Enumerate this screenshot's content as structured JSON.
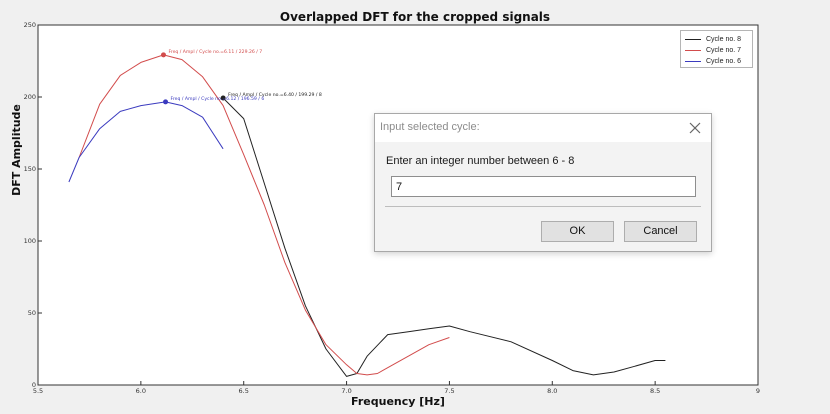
{
  "dialog": {
    "title": "Input selected cycle:",
    "prompt": "Enter an integer number between 6 - 8",
    "input_value": "7",
    "ok_label": "OK",
    "cancel_label": "Cancel"
  },
  "chart_data": {
    "type": "line",
    "title": "Overlapped DFT for  the cropped signals",
    "xlabel": "Frequency [Hz]",
    "ylabel": "DFT  Amplitude",
    "xlim": [
      5.5,
      9.0
    ],
    "ylim": [
      0,
      250
    ],
    "xticks": [
      "5.5",
      "6.0",
      "6.5",
      "7.0",
      "7.5",
      "8.0",
      "8.5",
      "9"
    ],
    "yticks": [
      "0",
      "50",
      "100",
      "150",
      "200",
      "250"
    ],
    "grid": false,
    "legend_position": "top-right",
    "series": [
      {
        "name": "Cycle no. 8",
        "color": "#222222",
        "x": [
          6.4,
          6.5,
          6.6,
          6.7,
          6.8,
          6.9,
          7.0,
          7.05,
          7.1,
          7.2,
          7.3,
          7.4,
          7.5,
          7.6,
          7.8,
          8.0,
          8.1,
          8.2,
          8.3,
          8.4,
          8.5,
          8.55
        ],
        "y": [
          199.29,
          185,
          140,
          95,
          55,
          25,
          6,
          8,
          20,
          35,
          37,
          39,
          41,
          37,
          30,
          17,
          10,
          7,
          9,
          13,
          17,
          17
        ]
      },
      {
        "name": "Cycle no. 7",
        "color": "#d24c4c",
        "x": [
          5.7,
          5.8,
          5.9,
          6.0,
          6.11,
          6.2,
          6.3,
          6.4,
          6.5,
          6.6,
          6.7,
          6.8,
          6.9,
          7.0,
          7.05,
          7.1,
          7.15,
          7.2,
          7.3,
          7.4,
          7.5
        ],
        "y": [
          158,
          195,
          215,
          224,
          229.26,
          226,
          214,
          194,
          160,
          125,
          85,
          52,
          28,
          14,
          8,
          7,
          8,
          12,
          20,
          28,
          33
        ]
      },
      {
        "name": "Cycle no. 6",
        "color": "#3b3bbf",
        "x": [
          5.65,
          5.7,
          5.8,
          5.9,
          6.0,
          6.12,
          6.2,
          6.3,
          6.4
        ],
        "y": [
          141,
          158,
          178,
          190,
          194,
          196.59,
          194,
          186,
          164
        ]
      }
    ],
    "annotations": [
      {
        "series": 1,
        "x": 6.11,
        "y": 229.26,
        "text": "Freq / Ampl / Cycle no.=6.11 / 229.26 /  7"
      },
      {
        "series": 0,
        "x": 6.4,
        "y": 199.29,
        "text": "Freq / Ampl / Cycle no.=6.40 / 199.29 /  8"
      },
      {
        "series": 2,
        "x": 6.12,
        "y": 196.59,
        "text": "Freq / Ampl / Cycle no.=6.12 / 196.59 /  6"
      }
    ]
  }
}
